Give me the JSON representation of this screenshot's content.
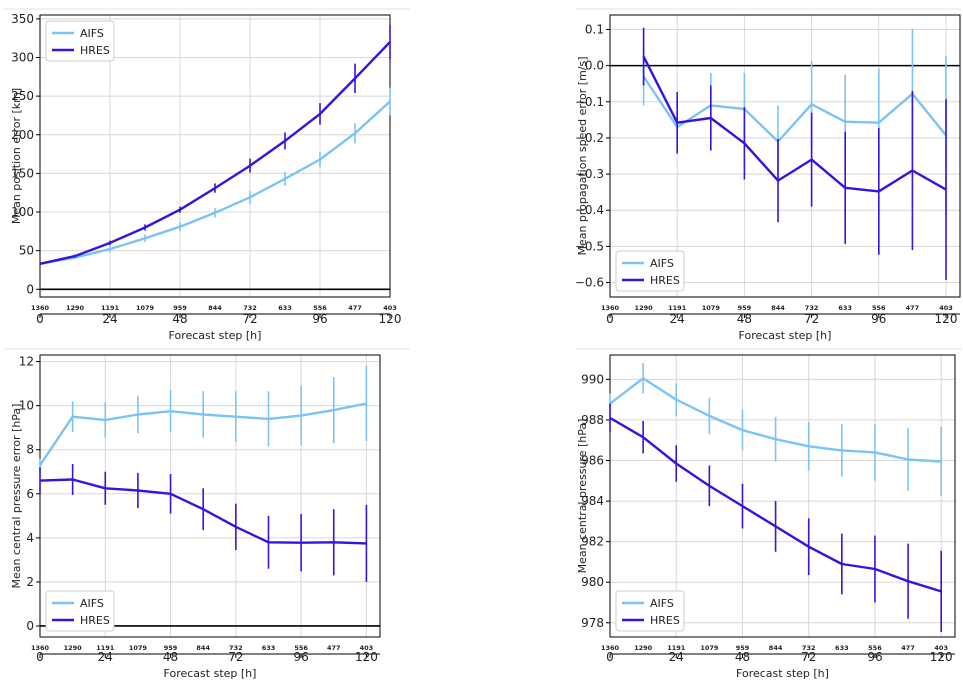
{
  "colors": {
    "aifs": "#7cc3f5",
    "hres": "#3414e0",
    "zero": "#000000",
    "grid": "#d8d8d8"
  },
  "chart_data": [
    {
      "type": "line",
      "xlabel": "Forecast step [h]",
      "ylabel": "Mean position error [km]",
      "x_ticks": [
        0,
        24,
        48,
        72,
        96,
        120
      ],
      "y_ticks": [
        0,
        50,
        100,
        150,
        200,
        250,
        300,
        350
      ],
      "y_tick_labels": [
        "0",
        "50",
        "100",
        "150",
        "200",
        "250",
        "300",
        "350"
      ],
      "xlim": [
        0,
        120
      ],
      "ylim": [
        -10,
        355
      ],
      "zero_line": true,
      "legend_position": "top-left",
      "sample_counts": {
        "x": [
          0,
          12,
          24,
          36,
          48,
          60,
          72,
          84,
          96,
          108,
          120
        ],
        "labels": [
          "1360",
          "1290",
          "1191",
          "1079",
          "959",
          "844",
          "732",
          "633",
          "556",
          "477",
          "403"
        ]
      },
      "series": [
        {
          "name": "AIFS",
          "color_key": "aifs",
          "x": [
            0,
            12,
            24,
            36,
            48,
            60,
            72,
            84,
            96,
            108,
            120
          ],
          "values": [
            33,
            41,
            52,
            66,
            81,
            99,
            119,
            143,
            168,
            202,
            243
          ],
          "err": [
            0,
            2,
            4,
            5,
            6,
            6,
            8,
            9,
            10,
            13,
            18
          ]
        },
        {
          "name": "HRES",
          "color_key": "hres",
          "x": [
            0,
            12,
            24,
            36,
            48,
            60,
            72,
            84,
            96,
            108,
            120
          ],
          "values": [
            33,
            43,
            60,
            80,
            103,
            131,
            160,
            192,
            227,
            273,
            320
          ],
          "err": [
            0,
            2,
            3,
            4,
            4,
            6,
            9,
            11,
            14,
            19,
            22
          ]
        }
      ]
    },
    {
      "type": "line",
      "xlabel": "Forecast step [h]",
      "ylabel": "Mean propagation speed error [m/s]",
      "x_ticks": [
        0,
        24,
        48,
        72,
        96,
        120
      ],
      "y_ticks": [
        0.1,
        0.0,
        -0.1,
        -0.2,
        -0.3,
        -0.4,
        -0.5,
        -0.6
      ],
      "y_tick_labels": [
        "0.1",
        "0.0",
        "−0.1",
        "−0.2",
        "−0.3",
        "−0.4",
        "−0.5",
        "−0.6"
      ],
      "xlim": [
        0,
        125
      ],
      "ylim": [
        -0.64,
        0.14
      ],
      "zero_line": true,
      "legend_position": "bottom-left",
      "sample_counts": {
        "x": [
          0,
          12,
          24,
          36,
          48,
          60,
          72,
          84,
          96,
          108,
          120
        ],
        "labels": [
          "1360",
          "1290",
          "1191",
          "1079",
          "959",
          "844",
          "732",
          "633",
          "556",
          "477",
          "403"
        ]
      },
      "series": [
        {
          "name": "AIFS",
          "color_key": "aifs",
          "x": [
            12,
            24,
            36,
            48,
            60,
            72,
            84,
            96,
            108,
            120
          ],
          "values": [
            -0.03,
            -0.17,
            -0.11,
            -0.12,
            -0.21,
            -0.107,
            -0.155,
            -0.158,
            -0.078,
            -0.193
          ],
          "err": [
            0.08,
            0.07,
            0.09,
            0.1,
            0.1,
            0.12,
            0.13,
            0.15,
            0.18,
            0.22
          ]
        },
        {
          "name": "HRES",
          "color_key": "hres",
          "x": [
            12,
            24,
            36,
            48,
            60,
            72,
            84,
            96,
            108,
            120
          ],
          "values": [
            0.025,
            -0.158,
            -0.145,
            -0.215,
            -0.318,
            -0.26,
            -0.338,
            -0.348,
            -0.29,
            -0.343
          ],
          "err": [
            0.08,
            0.085,
            0.09,
            0.1,
            0.115,
            0.13,
            0.155,
            0.175,
            0.22,
            0.25
          ]
        }
      ]
    },
    {
      "type": "line",
      "xlabel": "Forecast step [h]",
      "ylabel": "Mean central pressure error [hPa]",
      "x_ticks": [
        0,
        24,
        48,
        72,
        96,
        120
      ],
      "y_ticks": [
        0,
        2,
        4,
        6,
        8,
        10,
        12
      ],
      "y_tick_labels": [
        "0",
        "2",
        "4",
        "6",
        "8",
        "10",
        "12"
      ],
      "xlim": [
        0,
        125
      ],
      "ylim": [
        -0.5,
        12.3
      ],
      "zero_line": true,
      "legend_position": "bottom-left",
      "sample_counts": {
        "x": [
          0,
          12,
          24,
          36,
          48,
          60,
          72,
          84,
          96,
          108,
          120
        ],
        "labels": [
          "1360",
          "1290",
          "1191",
          "1079",
          "959",
          "844",
          "732",
          "633",
          "556",
          "477",
          "403"
        ]
      },
      "series": [
        {
          "name": "AIFS",
          "color_key": "aifs",
          "x": [
            0,
            12,
            24,
            36,
            48,
            60,
            72,
            84,
            96,
            108,
            120
          ],
          "values": [
            7.3,
            9.5,
            9.35,
            9.6,
            9.75,
            9.6,
            9.5,
            9.4,
            9.55,
            9.8,
            10.1
          ],
          "err": [
            0.3,
            0.7,
            0.8,
            0.85,
            0.95,
            1.05,
            1.15,
            1.25,
            1.35,
            1.5,
            1.7
          ]
        },
        {
          "name": "HRES",
          "color_key": "hres",
          "x": [
            0,
            12,
            24,
            36,
            48,
            60,
            72,
            84,
            96,
            108,
            120
          ],
          "values": [
            6.6,
            6.65,
            6.25,
            6.15,
            6.0,
            5.3,
            4.5,
            3.8,
            3.78,
            3.8,
            3.75
          ],
          "err": [
            0.6,
            0.7,
            0.75,
            0.8,
            0.9,
            0.95,
            1.05,
            1.2,
            1.3,
            1.5,
            1.75
          ]
        }
      ]
    },
    {
      "type": "line",
      "xlabel": "Forecast step [h]",
      "ylabel": "Mean central pressure [hPa]",
      "x_ticks": [
        0,
        24,
        48,
        72,
        96,
        120
      ],
      "y_ticks": [
        978,
        980,
        982,
        984,
        986,
        988,
        990
      ],
      "y_tick_labels": [
        "978",
        "980",
        "982",
        "984",
        "986",
        "988",
        "990"
      ],
      "xlim": [
        0,
        125
      ],
      "ylim": [
        977.3,
        991.2
      ],
      "zero_line": false,
      "legend_position": "bottom-left",
      "sample_counts": {
        "x": [
          0,
          12,
          24,
          36,
          48,
          60,
          72,
          84,
          96,
          108,
          120
        ],
        "labels": [
          "1360",
          "1290",
          "1191",
          "1079",
          "959",
          "844",
          "732",
          "633",
          "556",
          "477",
          "403"
        ]
      },
      "series": [
        {
          "name": "AIFS",
          "color_key": "aifs",
          "x": [
            0,
            12,
            24,
            36,
            48,
            60,
            72,
            84,
            96,
            108,
            120
          ],
          "values": [
            988.8,
            990.05,
            989.0,
            988.2,
            987.5,
            987.05,
            986.7,
            986.5,
            986.4,
            986.05,
            985.95
          ],
          "err": [
            0.5,
            0.75,
            0.8,
            0.9,
            1.0,
            1.1,
            1.2,
            1.3,
            1.4,
            1.55,
            1.7
          ]
        },
        {
          "name": "HRES",
          "color_key": "hres",
          "x": [
            0,
            12,
            24,
            36,
            48,
            60,
            72,
            84,
            96,
            108,
            120
          ],
          "values": [
            988.1,
            987.15,
            985.85,
            984.75,
            983.75,
            982.75,
            981.75,
            980.9,
            980.65,
            980.05,
            979.55
          ],
          "err": [
            0.7,
            0.8,
            0.9,
            1.0,
            1.1,
            1.25,
            1.4,
            1.5,
            1.65,
            1.85,
            2.0
          ]
        }
      ]
    }
  ]
}
